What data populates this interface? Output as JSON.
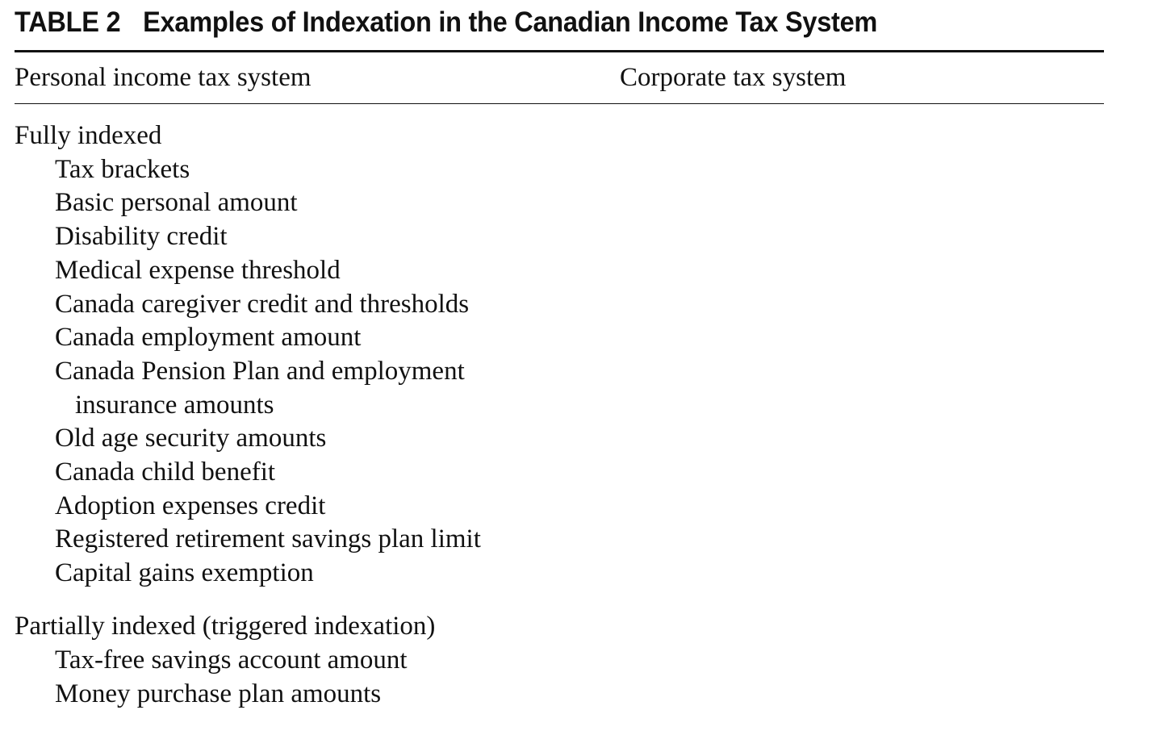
{
  "table": {
    "label": "TABLE 2",
    "title": "Examples of Indexation in the Canadian Income Tax System",
    "columns": {
      "personal": "Personal income tax system",
      "corporate": "Corporate tax system"
    },
    "groups": [
      {
        "heading": "Fully indexed",
        "items": [
          {
            "line1": "Tax brackets",
            "line2": ""
          },
          {
            "line1": "Basic personal amount",
            "line2": ""
          },
          {
            "line1": "Disability credit",
            "line2": ""
          },
          {
            "line1": "Medical expense threshold",
            "line2": ""
          },
          {
            "line1": "Canada caregiver credit and thresholds",
            "line2": ""
          },
          {
            "line1": "Canada employment amount",
            "line2": ""
          },
          {
            "line1": "Canada Pension Plan and employment",
            "line2": "insurance amounts"
          },
          {
            "line1": "Old age security amounts",
            "line2": ""
          },
          {
            "line1": "Canada child benefit",
            "line2": ""
          },
          {
            "line1": "Adoption expenses credit",
            "line2": ""
          },
          {
            "line1": "Registered retirement savings plan limit",
            "line2": ""
          },
          {
            "line1": "Capital gains exemption",
            "line2": ""
          }
        ]
      },
      {
        "heading": "Partially indexed (triggered indexation)",
        "items": [
          {
            "line1": "Tax-free savings account amount",
            "line2": ""
          },
          {
            "line1": "Money purchase plan amounts",
            "line2": ""
          }
        ]
      }
    ]
  }
}
